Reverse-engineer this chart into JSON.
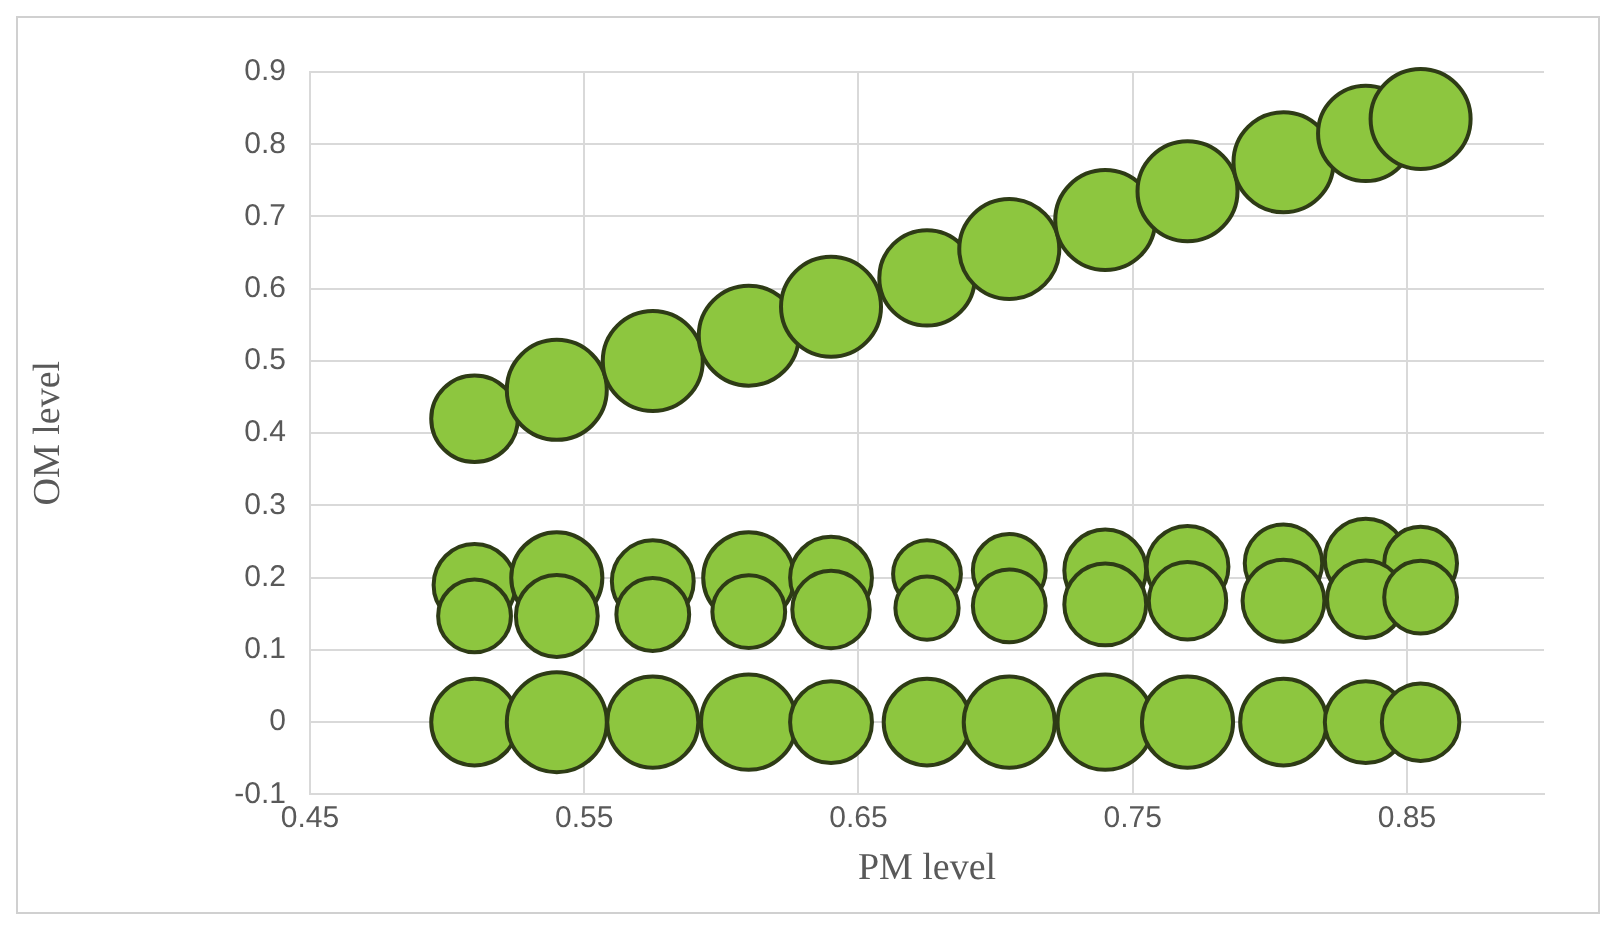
{
  "chart_data": {
    "type": "bubble",
    "xlabel": "PM level",
    "ylabel": "OM level",
    "xlim": [
      0.45,
      0.9
    ],
    "xticks": [
      0.45,
      0.55,
      0.65,
      0.75,
      0.85
    ],
    "ylim": [
      -0.1,
      0.9
    ],
    "yticks": [
      -0.1,
      0,
      0.1,
      0.2,
      0.3,
      0.4,
      0.5,
      0.6,
      0.7,
      0.8,
      0.9
    ],
    "grid": true,
    "legend": false,
    "x": [
      0.51,
      0.54,
      0.575,
      0.61,
      0.64,
      0.675,
      0.705,
      0.74,
      0.77,
      0.805,
      0.835,
      0.855
    ],
    "series": [
      {
        "color": "#8dc63f",
        "values": [
          0,
          0,
          0,
          0,
          0,
          0,
          0,
          0,
          0,
          0,
          0,
          0
        ],
        "sizes": [
          0.75,
          1,
          0.83,
          0.91,
          0.67,
          0.75,
          0.83,
          0.91,
          0.83,
          0.75,
          0.67,
          0.6
        ]
      },
      {
        "color": "#8dc63f",
        "values": [
          0.147,
          0.147,
          0.149,
          0.153,
          0.156,
          0.158,
          0.161,
          0.163,
          0.168,
          0.168,
          0.17,
          0.173
        ],
        "sizes": [
          0.53,
          0.67,
          0.53,
          0.53,
          0.6,
          0.4,
          0.53,
          0.67,
          0.6,
          0.67,
          0.6,
          0.53
        ]
      },
      {
        "color": "#8dc63f",
        "values": [
          0.19,
          0.2,
          0.195,
          0.2,
          0.2,
          0.205,
          0.21,
          0.21,
          0.215,
          0.22,
          0.225,
          0.22
        ],
        "sizes": [
          0.67,
          0.83,
          0.67,
          0.83,
          0.67,
          0.46,
          0.53,
          0.67,
          0.67,
          0.6,
          0.67,
          0.53
        ]
      },
      {
        "color": "#8dc63f",
        "values": [
          0.42,
          0.46,
          0.5,
          0.535,
          0.575,
          0.615,
          0.655,
          0.695,
          0.735,
          0.775,
          0.815,
          0.835
        ],
        "sizes": [
          0.75,
          1,
          1,
          1,
          1,
          0.91,
          1,
          1,
          1,
          1,
          0.91,
          1
        ]
      }
    ]
  }
}
